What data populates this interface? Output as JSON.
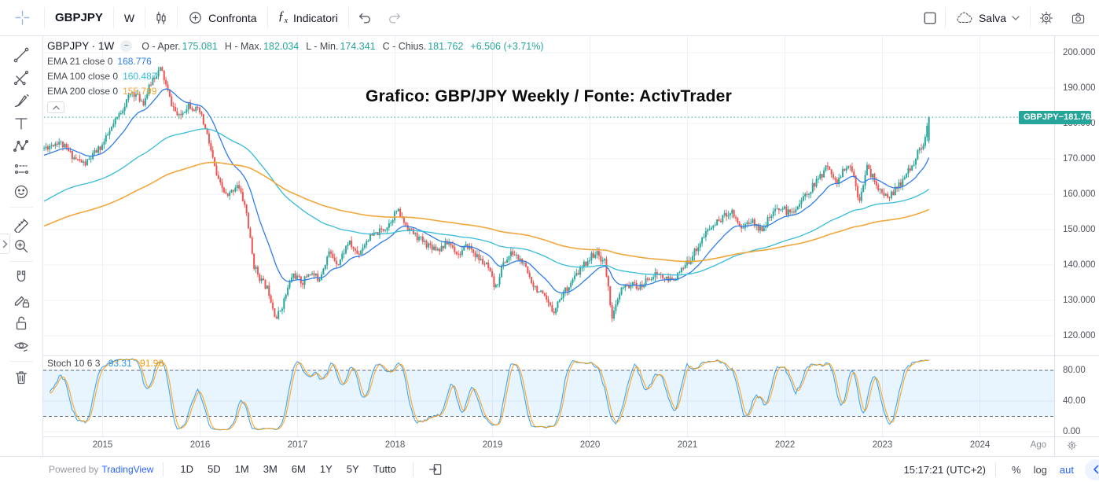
{
  "header": {
    "symbol": "GBPJPY",
    "interval": "W",
    "compare": "Confronta",
    "indicators": "Indicatori",
    "save": "Salva"
  },
  "legend": {
    "title": "GBPJPY · 1W",
    "ohlc": [
      {
        "label": "O - Aper.",
        "value": "175.081"
      },
      {
        "label": "H - Max.",
        "value": "182.034"
      },
      {
        "label": "L - Min.",
        "value": "174.341"
      },
      {
        "label": "C - Chius.",
        "value": "181.762"
      }
    ],
    "change": "+6.506 (+3.71%)",
    "value_color": "#26a69a",
    "emas": [
      {
        "label": "EMA 21 close 0",
        "value": "168.776",
        "color": "#2e7de9"
      },
      {
        "label": "EMA 100 close 0",
        "value": "160.487",
        "color": "#35bcd9"
      },
      {
        "label": "EMA 200 close 0",
        "value": "155.799",
        "color": "#f0a73c"
      }
    ]
  },
  "overlay_title": "Grafico: GBP/JPY Weekly / Fonte: ActivTrader",
  "price_axis": {
    "labels": [
      {
        "text": "200.000",
        "p": 200
      },
      {
        "text": "190.000",
        "p": 190
      },
      {
        "text": "180.000",
        "p": 180
      },
      {
        "text": "170.000",
        "p": 170
      },
      {
        "text": "160.000",
        "p": 160
      },
      {
        "text": "150.000",
        "p": 150
      },
      {
        "text": "140.000",
        "p": 140
      },
      {
        "text": "130.000",
        "p": 130
      },
      {
        "text": "120.000",
        "p": 120
      }
    ],
    "badge": {
      "symbol": "GBPJPY",
      "dash": "−",
      "value": "181.762",
      "color": "#26a69a"
    }
  },
  "stoch": {
    "label": "Stoch 10 6 3",
    "k": "93.31",
    "d": "91.96",
    "axis": [
      {
        "text": "80.00",
        "v": 80
      },
      {
        "text": "40.00",
        "v": 40
      },
      {
        "text": "0.00",
        "v": 0
      }
    ]
  },
  "time_axis": {
    "labels": [
      {
        "text": "2015",
        "t": 2015
      },
      {
        "text": "2016",
        "t": 2016
      },
      {
        "text": "2017",
        "t": 2017
      },
      {
        "text": "2018",
        "t": 2018
      },
      {
        "text": "2019",
        "t": 2019
      },
      {
        "text": "2020",
        "t": 2020
      },
      {
        "text": "2021",
        "t": 2021
      },
      {
        "text": "2022",
        "t": 2022
      },
      {
        "text": "2023",
        "t": 2023
      },
      {
        "text": "2024",
        "t": 2024
      },
      {
        "text": "Ago",
        "t": 2024.6
      }
    ]
  },
  "footer": {
    "powered_by": "Powered by",
    "tradingview": "TradingView",
    "ranges": [
      "1D",
      "5D",
      "1M",
      "3M",
      "6M",
      "1Y",
      "5Y",
      "Tutto"
    ],
    "clock": "15:17:21 (UTC+2)",
    "percent": "%",
    "log": "log",
    "auto": "aut"
  },
  "chart_data": {
    "type": "candlestick",
    "symbol": "GBPJPY",
    "timeframe": "1W",
    "title": "GBPJPY 1W with EMA 21/100/200 and Stoch 10 6 3",
    "weeks_per_year": 52,
    "current_price": 181.762,
    "last_candle": {
      "open": 175.081,
      "high": 182.034,
      "low": 174.341,
      "close": 181.762
    },
    "x_domain": [
      2014.4,
      2024.76
    ],
    "y_domain_price": [
      114.4,
      204.7
    ],
    "price_anchors": [
      [
        2014.4,
        173
      ],
      [
        2014.55,
        175
      ],
      [
        2014.72,
        170
      ],
      [
        2014.82,
        168.5
      ],
      [
        2015.0,
        174
      ],
      [
        2015.18,
        183
      ],
      [
        2015.3,
        189
      ],
      [
        2015.42,
        186
      ],
      [
        2015.52,
        193
      ],
      [
        2015.6,
        195.5
      ],
      [
        2015.7,
        186
      ],
      [
        2015.78,
        181.5
      ],
      [
        2015.88,
        185.5
      ],
      [
        2016.0,
        183
      ],
      [
        2016.08,
        176
      ],
      [
        2016.18,
        164
      ],
      [
        2016.28,
        159
      ],
      [
        2016.38,
        163
      ],
      [
        2016.47,
        156
      ],
      [
        2016.55,
        140
      ],
      [
        2016.62,
        136
      ],
      [
        2016.7,
        133
      ],
      [
        2016.78,
        124.8
      ],
      [
        2016.85,
        129
      ],
      [
        2016.95,
        137.5
      ],
      [
        2017.05,
        135
      ],
      [
        2017.12,
        138
      ],
      [
        2017.22,
        136
      ],
      [
        2017.32,
        143.5
      ],
      [
        2017.42,
        140.5
      ],
      [
        2017.52,
        146.5
      ],
      [
        2017.62,
        143
      ],
      [
        2017.72,
        147.5
      ],
      [
        2017.82,
        149
      ],
      [
        2017.92,
        151
      ],
      [
        2018.02,
        155.5
      ],
      [
        2018.12,
        151
      ],
      [
        2018.22,
        148
      ],
      [
        2018.32,
        146
      ],
      [
        2018.45,
        144.5
      ],
      [
        2018.55,
        146.5
      ],
      [
        2018.65,
        143
      ],
      [
        2018.75,
        145.5
      ],
      [
        2018.85,
        142
      ],
      [
        2018.95,
        139.5
      ],
      [
        2019.03,
        133
      ],
      [
        2019.1,
        140
      ],
      [
        2019.2,
        143.5
      ],
      [
        2019.3,
        141
      ],
      [
        2019.42,
        134.5
      ],
      [
        2019.52,
        131
      ],
      [
        2019.62,
        126.8
      ],
      [
        2019.72,
        132
      ],
      [
        2019.82,
        135.5
      ],
      [
        2019.95,
        140.5
      ],
      [
        2020.05,
        143.5
      ],
      [
        2020.15,
        141
      ],
      [
        2020.23,
        125
      ],
      [
        2020.32,
        133
      ],
      [
        2020.42,
        134.5
      ],
      [
        2020.52,
        133.5
      ],
      [
        2020.6,
        136.5
      ],
      [
        2020.7,
        137.5
      ],
      [
        2020.8,
        135.5
      ],
      [
        2020.9,
        137
      ],
      [
        2021.0,
        140.5
      ],
      [
        2021.1,
        145
      ],
      [
        2021.2,
        149.5
      ],
      [
        2021.32,
        152.5
      ],
      [
        2021.45,
        155.5
      ],
      [
        2021.55,
        150.5
      ],
      [
        2021.65,
        152.5
      ],
      [
        2021.75,
        150
      ],
      [
        2021.85,
        153.5
      ],
      [
        2021.95,
        156.5
      ],
      [
        2022.05,
        154.5
      ],
      [
        2022.15,
        157.5
      ],
      [
        2022.25,
        161
      ],
      [
        2022.35,
        164.5
      ],
      [
        2022.45,
        168.5
      ],
      [
        2022.52,
        163
      ],
      [
        2022.6,
        166.5
      ],
      [
        2022.68,
        168
      ],
      [
        2022.76,
        158.5
      ],
      [
        2022.84,
        167.5
      ],
      [
        2022.92,
        164
      ],
      [
        2023.0,
        159.5
      ],
      [
        2023.1,
        160
      ],
      [
        2023.2,
        163.5
      ],
      [
        2023.3,
        168
      ],
      [
        2023.38,
        172.5
      ],
      [
        2023.44,
        175.5
      ],
      [
        2023.47,
        181.762
      ]
    ],
    "emas": [
      {
        "period": 21,
        "seed": 171,
        "color": "#2e7de9"
      },
      {
        "period": 100,
        "seed": 158,
        "color": "#35bcd9"
      },
      {
        "period": 200,
        "seed": 151,
        "color": "#f0a73c"
      }
    ],
    "stoch": {
      "k_period": 10,
      "k_smooth": 6,
      "d_smooth": 3,
      "upper": 80,
      "lower": 20,
      "k_color": "#2196f3",
      "d_color": "#ff9800",
      "band_fill": "rgba(33,150,243,0.10)",
      "level_color": "#5d6674"
    },
    "colors": {
      "up": "#26a69a",
      "down": "#ef5350",
      "grid": "#eef0f5",
      "price_line": "#26a69a"
    }
  }
}
